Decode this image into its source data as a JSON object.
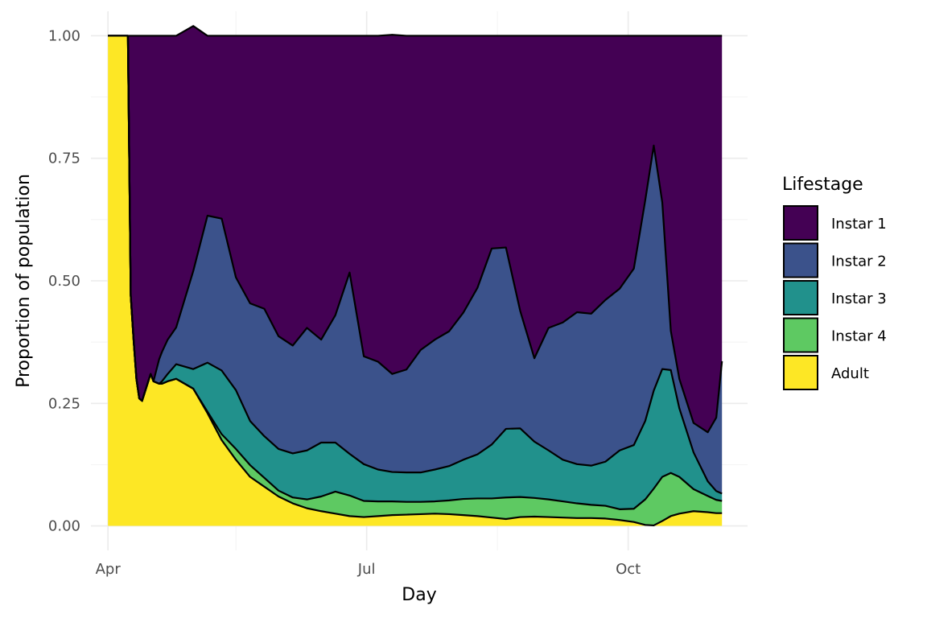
{
  "chart_data": {
    "type": "area",
    "stacked": true,
    "normalized": true,
    "xlabel": "Day",
    "ylabel": "Proportion of population",
    "x_ticks": [
      "Apr",
      "Jul",
      "Oct"
    ],
    "x_tick_dates": [
      "2021-04-01",
      "2021-07-01",
      "2021-10-01"
    ],
    "x_minor_dates": [
      "2021-05-16",
      "2021-08-16"
    ],
    "y_ticks": [
      "0.00",
      "0.25",
      "0.50",
      "0.75",
      "1.00"
    ],
    "ylim": [
      0,
      1
    ],
    "xlim": [
      "2021-03-26",
      "2021-11-12"
    ],
    "grid": true,
    "legend": {
      "title": "Lifestage",
      "position": "right"
    },
    "x": [
      "2021-04-01",
      "2021-04-08",
      "2021-04-09",
      "2021-04-10",
      "2021-04-11",
      "2021-04-12",
      "2021-04-13",
      "2021-04-16",
      "2021-04-17",
      "2021-04-19",
      "2021-04-20",
      "2021-04-22",
      "2021-04-25",
      "2021-05-01",
      "2021-05-06",
      "2021-05-11",
      "2021-05-16",
      "2021-05-21",
      "2021-05-26",
      "2021-05-31",
      "2021-06-05",
      "2021-06-10",
      "2021-06-15",
      "2021-06-20",
      "2021-06-25",
      "2021-06-30",
      "2021-07-05",
      "2021-07-10",
      "2021-07-15",
      "2021-07-20",
      "2021-07-25",
      "2021-07-30",
      "2021-08-04",
      "2021-08-09",
      "2021-08-14",
      "2021-08-19",
      "2021-08-24",
      "2021-08-29",
      "2021-09-03",
      "2021-09-08",
      "2021-09-13",
      "2021-09-18",
      "2021-09-23",
      "2021-09-28",
      "2021-10-03",
      "2021-10-07",
      "2021-10-10",
      "2021-10-13",
      "2021-10-16",
      "2021-10-19",
      "2021-10-24",
      "2021-10-29",
      "2021-11-01",
      "2021-11-03"
    ],
    "series": [
      {
        "name": "Adult",
        "color": "#fde725",
        "values": [
          1.0,
          1.0,
          0.47,
          0.38,
          0.3,
          0.26,
          0.255,
          0.31,
          0.295,
          0.29,
          0.29,
          0.295,
          0.3,
          0.28,
          0.23,
          0.175,
          0.135,
          0.1,
          0.08,
          0.06,
          0.046,
          0.036,
          0.03,
          0.025,
          0.02,
          0.018,
          0.02,
          0.022,
          0.023,
          0.024,
          0.025,
          0.024,
          0.022,
          0.02,
          0.017,
          0.014,
          0.018,
          0.019,
          0.018,
          0.017,
          0.016,
          0.016,
          0.015,
          0.012,
          0.008,
          0.002,
          0.001,
          0.01,
          0.02,
          0.025,
          0.03,
          0.028,
          0.026,
          0.026
        ]
      },
      {
        "name": "Instar 4",
        "color": "#5ec962",
        "values": [
          0,
          0,
          0,
          0,
          0,
          0,
          0,
          0,
          0,
          0,
          0,
          0,
          0,
          0,
          0.003,
          0.012,
          0.022,
          0.024,
          0.018,
          0.012,
          0.012,
          0.018,
          0.03,
          0.045,
          0.042,
          0.033,
          0.03,
          0.028,
          0.026,
          0.025,
          0.025,
          0.028,
          0.033,
          0.036,
          0.039,
          0.044,
          0.041,
          0.038,
          0.036,
          0.033,
          0.03,
          0.027,
          0.026,
          0.022,
          0.027,
          0.052,
          0.075,
          0.09,
          0.088,
          0.075,
          0.045,
          0.033,
          0.027,
          0.025
        ]
      },
      {
        "name": "Instar 3",
        "color": "#21918c",
        "values": [
          0,
          0,
          0,
          0,
          0,
          0,
          0,
          0,
          0,
          0,
          0.005,
          0.015,
          0.03,
          0.04,
          0.1,
          0.13,
          0.12,
          0.09,
          0.085,
          0.085,
          0.09,
          0.1,
          0.11,
          0.1,
          0.085,
          0.075,
          0.065,
          0.06,
          0.06,
          0.06,
          0.065,
          0.07,
          0.08,
          0.09,
          0.11,
          0.14,
          0.14,
          0.115,
          0.1,
          0.085,
          0.08,
          0.08,
          0.09,
          0.12,
          0.13,
          0.16,
          0.2,
          0.22,
          0.21,
          0.14,
          0.075,
          0.03,
          0.018,
          0.015
        ]
      },
      {
        "name": "Instar 2",
        "color": "#3b528b",
        "values": [
          0,
          0,
          0,
          0,
          0,
          0,
          0,
          0,
          0,
          0.05,
          0.06,
          0.07,
          0.075,
          0.2,
          0.3,
          0.31,
          0.23,
          0.24,
          0.26,
          0.23,
          0.22,
          0.25,
          0.21,
          0.26,
          0.37,
          0.22,
          0.22,
          0.2,
          0.21,
          0.25,
          0.265,
          0.275,
          0.3,
          0.34,
          0.4,
          0.37,
          0.24,
          0.17,
          0.25,
          0.28,
          0.31,
          0.31,
          0.33,
          0.33,
          0.36,
          0.45,
          0.5,
          0.34,
          0.08,
          0.06,
          0.06,
          0.1,
          0.15,
          0.27
        ]
      },
      {
        "name": "Instar 1",
        "color": "#440154",
        "values": [
          0,
          0,
          0.53,
          0.62,
          0.7,
          0.74,
          0.745,
          0.69,
          0.705,
          0.66,
          0.645,
          0.62,
          0.595,
          0.5,
          0.367,
          0.373,
          0.493,
          0.546,
          0.557,
          0.613,
          0.632,
          0.596,
          0.62,
          0.57,
          0.483,
          0.654,
          0.665,
          0.692,
          0.681,
          0.641,
          0.62,
          0.603,
          0.565,
          0.514,
          0.434,
          0.432,
          0.561,
          0.658,
          0.596,
          0.585,
          0.564,
          0.567,
          0.539,
          0.516,
          0.475,
          0.336,
          0.224,
          0.34,
          0.602,
          0.7,
          0.79,
          0.809,
          0.779,
          0.664
        ]
      }
    ]
  }
}
